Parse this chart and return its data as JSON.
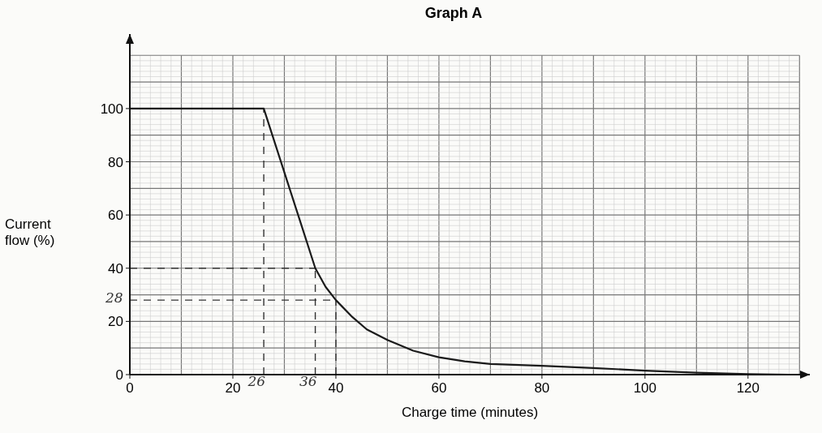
{
  "chart_data": {
    "type": "line",
    "title": "Graph A",
    "xlabel": "Charge time (minutes)",
    "ylabel": "Current flow (%)",
    "xlim": [
      0,
      132
    ],
    "ylim": [
      0,
      128
    ],
    "xticks": [
      0,
      20,
      40,
      60,
      80,
      100,
      120
    ],
    "yticks": [
      0,
      20,
      40,
      60,
      80,
      100
    ],
    "grid": true,
    "series": [
      {
        "color": "#1a1a1a",
        "x": [
          0,
          26,
          30,
          33,
          36,
          38,
          40,
          43,
          46,
          50,
          55,
          60,
          65,
          70,
          80,
          90,
          100,
          110,
          120,
          128
        ],
        "values": [
          100,
          100,
          76,
          58,
          40,
          33,
          28,
          22,
          17,
          13,
          9,
          6.5,
          5,
          4,
          3.3,
          2.5,
          1.5,
          0.7,
          0.2,
          0
        ]
      }
    ],
    "ref_lines": [
      {
        "axis": "x",
        "value": 26,
        "label": "26",
        "line_style": "dashed"
      },
      {
        "axis": "x",
        "value": 36,
        "label": "36",
        "line_style": "dashed"
      },
      {
        "axis": "x",
        "value": 40,
        "line_style": "dashed"
      },
      {
        "axis": "y",
        "value": 40,
        "line_style": "dashed"
      },
      {
        "axis": "y",
        "value": 28,
        "label": "28",
        "line_style": "dashed"
      }
    ]
  }
}
